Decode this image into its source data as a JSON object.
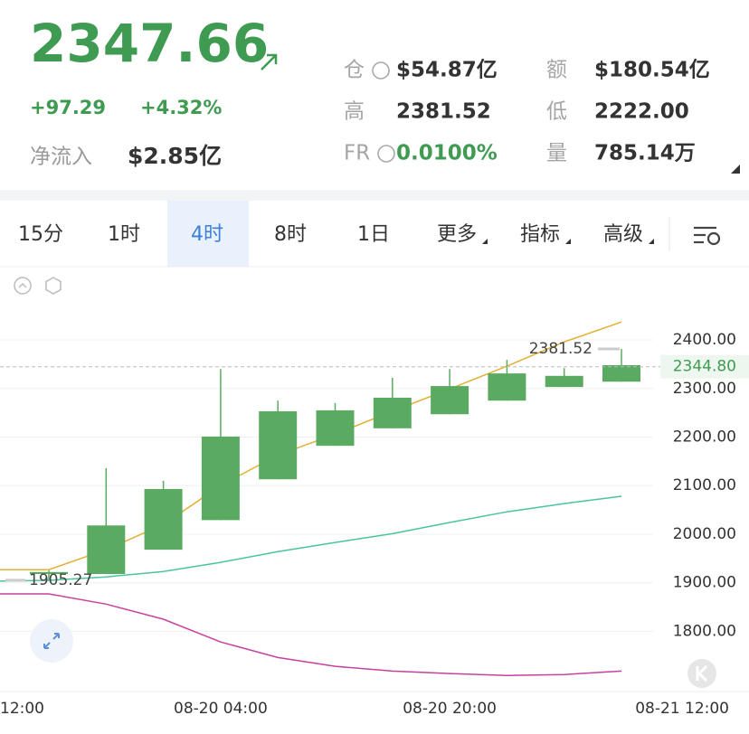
{
  "header": {
    "price": "2347.66",
    "change": "+97.29",
    "change_pct": "+4.32%",
    "net_inflow_label": "净流入",
    "net_inflow": "$2.85亿",
    "stats": [
      {
        "label": "仓",
        "value": "$54.87亿"
      },
      {
        "label": "额",
        "value": "$180.54亿"
      },
      {
        "label": "高",
        "value": "2381.52"
      },
      {
        "label": "低",
        "value": "2222.00"
      },
      {
        "label": "FR",
        "value": "0.0100%"
      },
      {
        "label": "量",
        "value": "785.14万"
      }
    ]
  },
  "tabs": {
    "items": [
      "15分",
      "1时",
      "4时",
      "8时",
      "1日",
      "更多",
      "指标",
      "高级"
    ],
    "active": 2
  },
  "chart_data": {
    "type": "candlestick",
    "categories": [
      "12:00",
      null,
      null,
      null,
      "08-20 04:00",
      null,
      null,
      null,
      "08-20 20:00",
      null,
      null,
      null,
      "08-21 12:00"
    ],
    "open": [
      null,
      1918,
      1918,
      1968,
      2029,
      2113,
      2182,
      2218,
      2247,
      2275,
      2303,
      2314,
      null
    ],
    "high": [
      null,
      1925,
      2136,
      2110,
      2340,
      2275,
      2270,
      2322,
      2340,
      2359,
      2342,
      2381.52,
      null
    ],
    "low": [
      null,
      1905.27,
      1918,
      1968,
      2029,
      2113,
      2182,
      2218,
      2247,
      2275,
      2303,
      2314,
      null
    ],
    "close": [
      null,
      1922,
      2018,
      2093,
      2201,
      2253,
      2255,
      2281,
      2305,
      2331,
      2326,
      2348,
      null
    ],
    "color": "#5aab61",
    "series": [
      {
        "color": "#e3b032",
        "values": [
          1927,
          1927,
          1968,
          2020,
          2100,
          2163,
          2206,
          2253,
          2299,
          2346,
          2396,
          2437,
          null
        ]
      },
      {
        "color": "#4cc3a0",
        "values": [
          1903,
          1905,
          1912,
          1923,
          1942,
          1964,
          1983,
          2001,
          2024,
          2046,
          2063,
          2078,
          null
        ]
      },
      {
        "color": "#c8419c",
        "values": [
          1877,
          1877,
          1856,
          1825,
          1778,
          1746,
          1728,
          1718,
          1713,
          1709,
          1711,
          1718,
          null
        ]
      }
    ],
    "ylim": [
      1676,
      2549
    ],
    "yticks": [
      {
        "value": 1800,
        "label": "1800.00"
      },
      {
        "value": 1900,
        "label": "1900.00"
      },
      {
        "value": 2000,
        "label": "2000.00"
      },
      {
        "value": 2100,
        "label": "2100.00"
      },
      {
        "value": 2200,
        "label": "2200.00"
      },
      {
        "value": 2300,
        "label": "2300.00"
      },
      {
        "value": 2400,
        "label": "2400.00"
      }
    ],
    "grid": true,
    "last_price": {
      "value": 2344.8,
      "label": "2344.80"
    }
  }
}
